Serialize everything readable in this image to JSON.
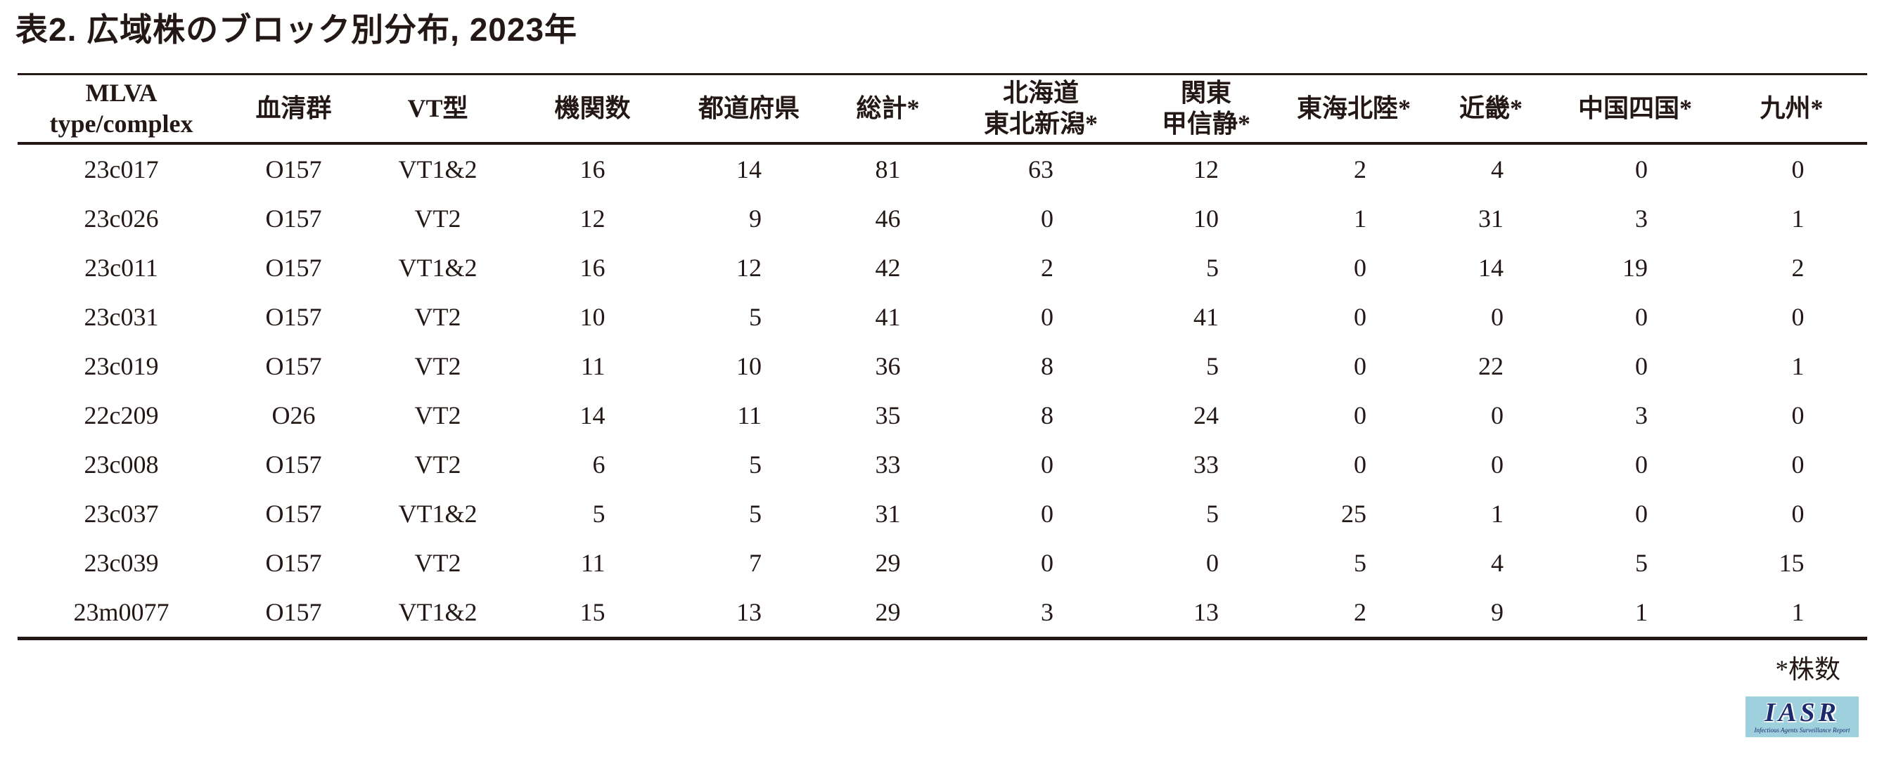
{
  "page": {
    "title": "表2. 広域株のブロック別分布, 2023年",
    "footnote": "*株数"
  },
  "table": {
    "columns": [
      {
        "key": "mlva",
        "label_lines": [
          "MLVA",
          "type/complex"
        ],
        "numeric": false
      },
      {
        "key": "serogroup",
        "label_lines": [
          "血清群"
        ],
        "numeric": false
      },
      {
        "key": "vt-type",
        "label_lines": [
          "VT型"
        ],
        "numeric": false
      },
      {
        "key": "institutions",
        "label_lines": [
          "機関数"
        ],
        "numeric": true
      },
      {
        "key": "prefectures",
        "label_lines": [
          "都道府県"
        ],
        "numeric": true
      },
      {
        "key": "total",
        "label_lines": [
          "総計*"
        ],
        "numeric": true
      },
      {
        "key": "hokkaido-tohoku-niigata",
        "label_lines": [
          "北海道",
          "東北新潟*"
        ],
        "numeric": true
      },
      {
        "key": "kanto-koshin-shizu",
        "label_lines": [
          "関東",
          "甲信静*"
        ],
        "numeric": true
      },
      {
        "key": "tokai-hokuriku",
        "label_lines": [
          "東海北陸*"
        ],
        "numeric": true
      },
      {
        "key": "kinki",
        "label_lines": [
          "近畿*"
        ],
        "numeric": true
      },
      {
        "key": "chugoku-shikoku",
        "label_lines": [
          "中国四国*"
        ],
        "numeric": true
      },
      {
        "key": "kyushu",
        "label_lines": [
          "九州*"
        ],
        "numeric": true
      }
    ],
    "rows": [
      [
        "23c017",
        "O157",
        "VT1&2",
        "16",
        "14",
        "81",
        "63",
        "12",
        "2",
        "4",
        "0",
        "0"
      ],
      [
        "23c026",
        "O157",
        "VT2",
        "12",
        "9",
        "46",
        "0",
        "10",
        "1",
        "31",
        "3",
        "1"
      ],
      [
        "23c011",
        "O157",
        "VT1&2",
        "16",
        "12",
        "42",
        "2",
        "5",
        "0",
        "14",
        "19",
        "2"
      ],
      [
        "23c031",
        "O157",
        "VT2",
        "10",
        "5",
        "41",
        "0",
        "41",
        "0",
        "0",
        "0",
        "0"
      ],
      [
        "23c019",
        "O157",
        "VT2",
        "11",
        "10",
        "36",
        "8",
        "5",
        "0",
        "22",
        "0",
        "1"
      ],
      [
        "22c209",
        "O26",
        "VT2",
        "14",
        "11",
        "35",
        "8",
        "24",
        "0",
        "0",
        "3",
        "0"
      ],
      [
        "23c008",
        "O157",
        "VT2",
        "6",
        "5",
        "33",
        "0",
        "33",
        "0",
        "0",
        "0",
        "0"
      ],
      [
        "23c037",
        "O157",
        "VT1&2",
        "5",
        "5",
        "31",
        "0",
        "5",
        "25",
        "1",
        "0",
        "0"
      ],
      [
        "23c039",
        "O157",
        "VT2",
        "11",
        "7",
        "29",
        "0",
        "0",
        "5",
        "4",
        "5",
        "15"
      ],
      [
        "23m0077",
        "O157",
        "VT1&2",
        "15",
        "13",
        "29",
        "3",
        "13",
        "2",
        "9",
        "1",
        "1"
      ]
    ]
  },
  "logo": {
    "acronym": "IASR",
    "subtitle": "Infectious Agents Surveillance Report"
  },
  "colors": {
    "text": "#231815",
    "rule": "#231815",
    "logo_background": "#9fd0de",
    "logo_text": "#1c2b6e"
  }
}
